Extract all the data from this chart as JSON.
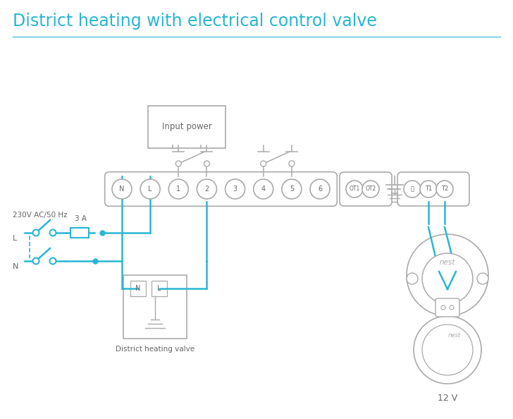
{
  "title": "District heating with electrical control valve",
  "title_color": "#29b6d2",
  "title_fontsize": 17,
  "bg_color": "#ffffff",
  "wire_color": "#29b6d2",
  "edge_color": "#aaaaaa",
  "text_color": "#666666",
  "label_230v": "230V AC/50 Hz",
  "label_L": "L",
  "label_N": "N",
  "label_3A": "3 A",
  "label_valve": "District heating valve",
  "label_12v": "12 V",
  "label_input_power": "Input power"
}
